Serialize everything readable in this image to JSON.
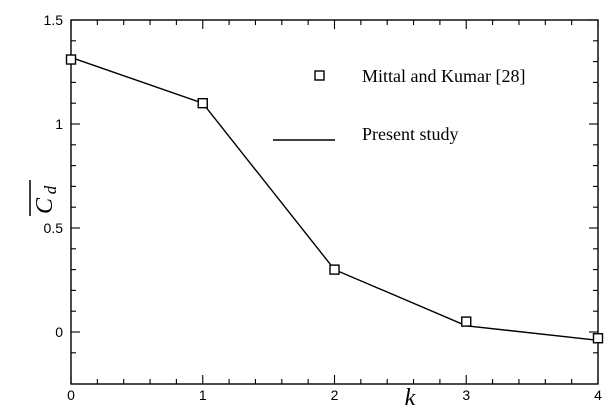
{
  "chart_data": {
    "type": "line",
    "title": "",
    "xlabel": "k",
    "ylabel": "C_d (mean)",
    "ylabel_display": "C",
    "ylabel_subscript": "d",
    "xlim": [
      0,
      4
    ],
    "ylim": [
      -0.15,
      1.5
    ],
    "xticks": [
      0,
      1,
      2,
      3,
      4
    ],
    "xtick_labels": [
      "0",
      "1",
      "2",
      "3",
      "4"
    ],
    "yticks": [
      0,
      0.5,
      1,
      1.5
    ],
    "ytick_labels": [
      "0",
      "0.5",
      "1",
      "1.5"
    ],
    "grid": false,
    "legend_position": "top-right",
    "series": [
      {
        "name": "Mittal and Kumar [28]",
        "style": "markers",
        "marker": "open-square",
        "x": [
          0,
          1,
          2,
          3,
          4
        ],
        "y": [
          1.31,
          1.1,
          0.3,
          0.05,
          -0.03
        ]
      },
      {
        "name": "Present study",
        "style": "line",
        "x": [
          0,
          1,
          2,
          3,
          4
        ],
        "y": [
          1.32,
          1.1,
          0.3,
          0.03,
          -0.04
        ]
      }
    ],
    "colors": {
      "line": "#000000",
      "marker_stroke": "#000000",
      "background": "#ffffff"
    }
  }
}
